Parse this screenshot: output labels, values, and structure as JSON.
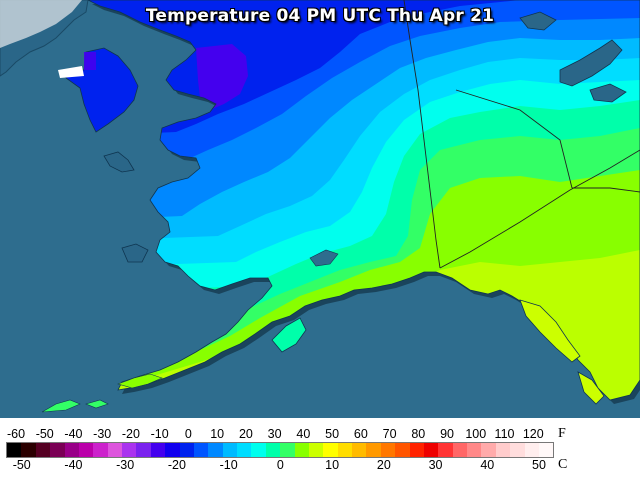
{
  "title": "Temperature 04 PM UTC Thu Apr 21",
  "legend": {
    "fahrenheit_unit": "F",
    "celsius_unit": "C",
    "fahrenheit_ticks": [
      "-60",
      "-50",
      "-40",
      "-30",
      "-20",
      "-10",
      "0",
      "10",
      "20",
      "30",
      "40",
      "50",
      "60",
      "70",
      "80",
      "90",
      "100",
      "110",
      "120"
    ],
    "celsius_ticks": [
      "-50",
      "-40",
      "-30",
      "-20",
      "-10",
      "0",
      "10",
      "20",
      "30",
      "40",
      "50"
    ],
    "fahrenheit_range": [
      -60,
      130
    ],
    "colors": [
      "#000000",
      "#2a0000",
      "#550022",
      "#7a0055",
      "#990088",
      "#bb00aa",
      "#cc22cc",
      "#dd55dd",
      "#aa33ee",
      "#7a22ee",
      "#4400ee",
      "#1100ee",
      "#0022ee",
      "#0055ff",
      "#0088ff",
      "#00bbff",
      "#00ddff",
      "#00ffee",
      "#00ffaa",
      "#33ff66",
      "#88ff00",
      "#ccff00",
      "#ffff00",
      "#ffdd00",
      "#ffbb00",
      "#ff9900",
      "#ff7700",
      "#ff5500",
      "#ff2200",
      "#ee0000",
      "#ff3333",
      "#ff6666",
      "#ff8888",
      "#ffaaaa",
      "#ffcccc",
      "#ffdddd",
      "#ffeeee",
      "#fff8f8"
    ]
  },
  "map": {
    "region": "Alaska",
    "ocean_color": "#2e6d8e",
    "land_outside_color": "#256485",
    "temperature_band_colors": [
      "#4400ee",
      "#0022ee",
      "#0055ff",
      "#0088ff",
      "#00bbff",
      "#00ddff",
      "#00ffee",
      "#00ffaa",
      "#33ff66",
      "#88ff00",
      "#bbff00"
    ]
  }
}
